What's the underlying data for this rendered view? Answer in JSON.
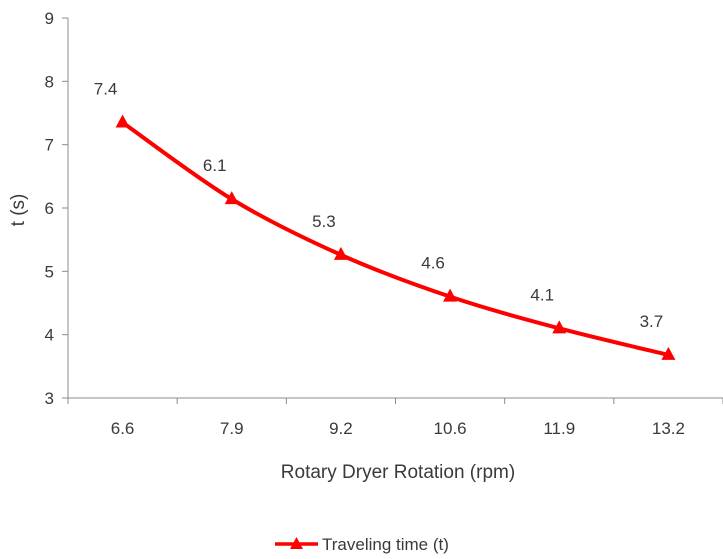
{
  "chart_data": {
    "type": "line",
    "title": "",
    "xlabel": "Rotary Dryer Rotation (rpm)",
    "ylabel": "t (s)",
    "categories": [
      "6.6",
      "7.9",
      "9.2",
      "10.6",
      "11.9",
      "13.2"
    ],
    "ylim": [
      3,
      9
    ],
    "yticks": [
      "3",
      "4",
      "5",
      "6",
      "7",
      "8",
      "9"
    ],
    "grid": false,
    "legend_position": "bottom",
    "series": [
      {
        "name": "Traveling time (t)",
        "color": "#ff0000",
        "marker": "triangle",
        "values": [
          7.35,
          6.14,
          5.26,
          4.6,
          4.1,
          3.68
        ],
        "labels": [
          "7.4",
          "6.1",
          "5.3",
          "4.6",
          "4.1",
          "3.7"
        ]
      }
    ]
  }
}
